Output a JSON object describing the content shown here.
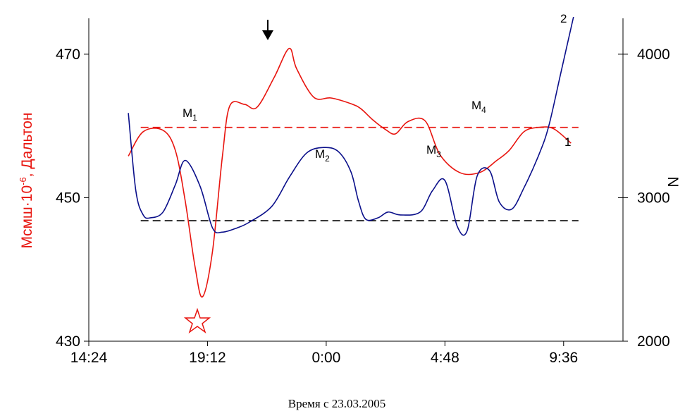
{
  "chart_data": {
    "type": "line",
    "xlabel": "Время с 23.03.2005",
    "ylabel_left": {
      "main": "Mсмш·10",
      "exp": "-6",
      "rest": ", Дальтон"
    },
    "ylabel_right": "N",
    "x_ticks": [
      "14:24",
      "19:12",
      "0:00",
      "4:48",
      "9:36"
    ],
    "x_tick_hours": [
      14.4,
      19.2,
      24.0,
      28.8,
      33.6
    ],
    "xlim": [
      14.4,
      36.0
    ],
    "y_left_ticks": [
      430,
      450,
      470
    ],
    "y_left_lim": [
      430,
      475
    ],
    "y_right_ticks": [
      2000,
      3000,
      4000
    ],
    "y_right_lim": [
      2000,
      4250
    ],
    "series": [
      {
        "name": "1",
        "color": "#e8140e",
        "axis": "left",
        "x": [
          16.0,
          16.6,
          17.4,
          17.9,
          18.3,
          18.7,
          19.0,
          19.4,
          19.8,
          20.1,
          20.7,
          21.2,
          21.9,
          22.5,
          22.8,
          23.5,
          24.2,
          25.0,
          25.4,
          25.9,
          26.4,
          26.8,
          27.3,
          28.0,
          28.6,
          29.4,
          30.2,
          30.9,
          31.4,
          32.0,
          32.6,
          33.2,
          33.9
        ],
        "y": [
          455.8,
          459.2,
          459.4,
          456.6,
          449.5,
          440.3,
          436.2,
          442.5,
          455.7,
          462.8,
          463.0,
          462.6,
          466.8,
          470.8,
          468.0,
          464.0,
          463.9,
          463.1,
          462.4,
          460.8,
          459.5,
          458.9,
          460.6,
          460.7,
          456.0,
          453.5,
          453.5,
          455.2,
          456.6,
          459.2,
          459.8,
          459.6,
          457.6
        ]
      },
      {
        "name": "2",
        "color": "#0a0f8a",
        "axis": "right",
        "x": [
          16.0,
          16.3,
          16.6,
          16.9,
          17.4,
          17.9,
          18.3,
          18.9,
          19.4,
          19.8,
          20.4,
          20.9,
          21.8,
          22.5,
          23.2,
          23.9,
          24.5,
          25.0,
          25.3,
          25.6,
          26.1,
          26.5,
          27.0,
          27.8,
          28.3,
          28.8,
          29.3,
          29.7,
          30.1,
          30.6,
          31.0,
          31.5,
          32.0,
          32.6,
          33.0,
          33.5,
          34.0
        ],
        "y": [
          3590,
          3050,
          2880,
          2860,
          2900,
          3090,
          3260,
          3080,
          2790,
          2760,
          2790,
          2830,
          2940,
          3140,
          3310,
          3350,
          3320,
          3180,
          2980,
          2850,
          2860,
          2900,
          2880,
          2900,
          3050,
          3120,
          2800,
          2770,
          3150,
          3190,
          2970,
          2920,
          3070,
          3300,
          3500,
          3880,
          4280
        ]
      }
    ],
    "reference_lines": [
      {
        "color": "#e8140e",
        "axis": "left",
        "value": 459.8,
        "x_from": 16.5,
        "x_to": 34.2
      },
      {
        "color": "#000000",
        "axis": "right",
        "value": 2840,
        "x_from": 16.5,
        "x_to": 34.2
      }
    ],
    "annotations": {
      "m1": {
        "base": "M",
        "sub": "1"
      },
      "m2": {
        "base": "M",
        "sub": "2"
      },
      "m3": {
        "base": "M",
        "sub": "3"
      },
      "m4": {
        "base": "M",
        "sub": "4"
      },
      "series1_label": "1",
      "series2_label": "2",
      "arrow_icon": "down-arrow",
      "star_icon": "star-outline"
    },
    "grid": false,
    "legend": "none"
  }
}
